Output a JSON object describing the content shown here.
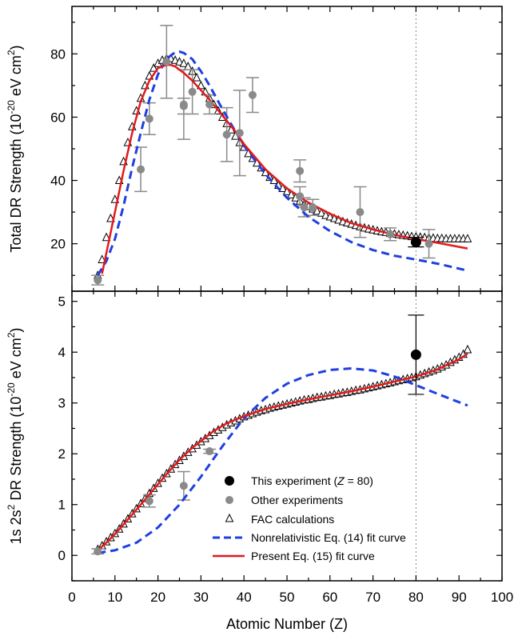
{
  "xlabel": "Atomic Number (Z)",
  "xlim": [
    0,
    100
  ],
  "x_ticks": [
    0,
    10,
    20,
    30,
    40,
    50,
    60,
    70,
    80,
    90,
    100
  ],
  "colors": {
    "experiment": "#000000",
    "other": "#8a8a8a",
    "fac": "#000000",
    "nonrel": "#1f3fe0",
    "present": "#e4191c",
    "reference_line": "#888888"
  },
  "chart_data": [
    {
      "type": "scatter",
      "ylabel": {
        "prefix": "Total DR Strength (10",
        "exponent": "-20",
        "middle": " eV cm",
        "power": "2",
        "suffix": ")"
      },
      "ylim": [
        5,
        95
      ],
      "y_ticks": [
        20,
        40,
        60,
        80
      ],
      "reference_x": 80,
      "this_experiment": [
        {
          "x": 80,
          "y": 20.5,
          "err": 1.5
        }
      ],
      "other_experiments": [
        {
          "x": 6,
          "y": 8.5,
          "err": 1.5
        },
        {
          "x": 16,
          "y": 43.5,
          "err": 7
        },
        {
          "x": 18,
          "y": 59.5,
          "err": 5
        },
        {
          "x": 22,
          "y": 77.5,
          "err": 11.5
        },
        {
          "x": 26,
          "y": 64,
          "err": 11
        },
        {
          "x": 26,
          "y": 63.5,
          "err": 2.5
        },
        {
          "x": 28,
          "y": 68,
          "err": 7
        },
        {
          "x": 32,
          "y": 64,
          "err": 3
        },
        {
          "x": 36,
          "y": 54.5,
          "err": 8.5
        },
        {
          "x": 39,
          "y": 55,
          "err": 13.5
        },
        {
          "x": 42,
          "y": 67,
          "err": 5.5
        },
        {
          "x": 53,
          "y": 43,
          "err": 3.5
        },
        {
          "x": 53,
          "y": 35,
          "err": 3
        },
        {
          "x": 54,
          "y": 31.5,
          "err": 3
        },
        {
          "x": 56,
          "y": 31.5,
          "err": 2.5
        },
        {
          "x": 67,
          "y": 30,
          "err": 8
        },
        {
          "x": 74,
          "y": 23,
          "err": 2
        },
        {
          "x": 83,
          "y": 20,
          "err": 4.5
        }
      ],
      "fac": [
        {
          "x": 6,
          "y": 10
        },
        {
          "x": 7,
          "y": 15
        },
        {
          "x": 8,
          "y": 22
        },
        {
          "x": 9,
          "y": 28
        },
        {
          "x": 10,
          "y": 34
        },
        {
          "x": 11,
          "y": 40
        },
        {
          "x": 12,
          "y": 46
        },
        {
          "x": 13,
          "y": 52
        },
        {
          "x": 14,
          "y": 57
        },
        {
          "x": 15,
          "y": 62
        },
        {
          "x": 16,
          "y": 66
        },
        {
          "x": 17,
          "y": 70
        },
        {
          "x": 18,
          "y": 73
        },
        {
          "x": 19,
          "y": 75.5
        },
        {
          "x": 20,
          "y": 77
        },
        {
          "x": 21,
          "y": 78
        },
        {
          "x": 22,
          "y": 78.5
        },
        {
          "x": 23,
          "y": 78.5
        },
        {
          "x": 24,
          "y": 78
        },
        {
          "x": 25,
          "y": 77.5
        },
        {
          "x": 26,
          "y": 77
        },
        {
          "x": 27,
          "y": 76
        },
        {
          "x": 28,
          "y": 74.5
        },
        {
          "x": 29,
          "y": 72.5
        },
        {
          "x": 30,
          "y": 70
        },
        {
          "x": 31,
          "y": 68
        },
        {
          "x": 32,
          "y": 66
        },
        {
          "x": 33,
          "y": 64
        },
        {
          "x": 34,
          "y": 62
        },
        {
          "x": 35,
          "y": 60
        },
        {
          "x": 36,
          "y": 58
        },
        {
          "x": 37,
          "y": 56
        },
        {
          "x": 38,
          "y": 54
        },
        {
          "x": 39,
          "y": 52
        },
        {
          "x": 40,
          "y": 50.5
        },
        {
          "x": 41,
          "y": 48.5
        },
        {
          "x": 42,
          "y": 47
        },
        {
          "x": 43,
          "y": 45.5
        },
        {
          "x": 44,
          "y": 44
        },
        {
          "x": 45,
          "y": 42.5
        },
        {
          "x": 46,
          "y": 41
        },
        {
          "x": 47,
          "y": 40
        },
        {
          "x": 48,
          "y": 38.5
        },
        {
          "x": 49,
          "y": 37.5
        },
        {
          "x": 50,
          "y": 36.5
        },
        {
          "x": 51,
          "y": 35.5
        },
        {
          "x": 52,
          "y": 34.5
        },
        {
          "x": 53,
          "y": 33.5
        },
        {
          "x": 54,
          "y": 32.5
        },
        {
          "x": 55,
          "y": 31.8
        },
        {
          "x": 56,
          "y": 31
        },
        {
          "x": 57,
          "y": 30.3
        },
        {
          "x": 58,
          "y": 29.7
        },
        {
          "x": 59,
          "y": 29
        },
        {
          "x": 60,
          "y": 28.5
        },
        {
          "x": 61,
          "y": 28
        },
        {
          "x": 62,
          "y": 27.5
        },
        {
          "x": 63,
          "y": 27
        },
        {
          "x": 64,
          "y": 26.6
        },
        {
          "x": 65,
          "y": 26.2
        },
        {
          "x": 66,
          "y": 25.8
        },
        {
          "x": 67,
          "y": 25.4
        },
        {
          "x": 68,
          "y": 25
        },
        {
          "x": 69,
          "y": 24.7
        },
        {
          "x": 70,
          "y": 24.4
        },
        {
          "x": 71,
          "y": 24.1
        },
        {
          "x": 72,
          "y": 23.8
        },
        {
          "x": 73,
          "y": 23.6
        },
        {
          "x": 74,
          "y": 23.3
        },
        {
          "x": 75,
          "y": 23.1
        },
        {
          "x": 76,
          "y": 22.9
        },
        {
          "x": 77,
          "y": 22.7
        },
        {
          "x": 78,
          "y": 22.5
        },
        {
          "x": 79,
          "y": 22.3
        },
        {
          "x": 80,
          "y": 22.2
        },
        {
          "x": 81,
          "y": 22.1
        },
        {
          "x": 82,
          "y": 22
        },
        {
          "x": 83,
          "y": 21.9
        },
        {
          "x": 84,
          "y": 21.8
        },
        {
          "x": 85,
          "y": 21.7
        },
        {
          "x": 86,
          "y": 21.7
        },
        {
          "x": 87,
          "y": 21.6
        },
        {
          "x": 88,
          "y": 21.6
        },
        {
          "x": 89,
          "y": 21.6
        },
        {
          "x": 90,
          "y": 21.6
        },
        {
          "x": 91,
          "y": 21.6
        },
        {
          "x": 92,
          "y": 21.6
        }
      ],
      "nonrel_fit": {
        "x": [
          6,
          8,
          10,
          12,
          14,
          16,
          18,
          20,
          22,
          24,
          25,
          26,
          28,
          30,
          32,
          35,
          38,
          40,
          45,
          50,
          55,
          60,
          65,
          70,
          75,
          80,
          85,
          92
        ],
        "y": [
          10,
          14.5,
          21.5,
          32,
          44,
          55,
          65.5,
          73.5,
          78.5,
          80.5,
          80.7,
          80.3,
          78.3,
          74.5,
          70,
          62.5,
          55.5,
          51,
          42,
          34.5,
          28.5,
          24,
          20.5,
          18,
          16.2,
          15,
          13.7,
          11.5
        ]
      },
      "present_fit": {
        "x": [
          7,
          8,
          10,
          12,
          14,
          16,
          18,
          20,
          22,
          23,
          24,
          26,
          28,
          30,
          32,
          35,
          38,
          40,
          45,
          50,
          55,
          60,
          65,
          70,
          75,
          80,
          85,
          92
        ],
        "y": [
          10.5,
          17,
          30,
          43,
          55,
          65,
          71.5,
          75.5,
          76.5,
          76.5,
          76,
          74,
          71.5,
          68.5,
          65.5,
          60.5,
          55.5,
          51.5,
          43.5,
          37.5,
          33,
          29.5,
          26.5,
          24.5,
          22.8,
          21.5,
          20.3,
          18.5
        ]
      }
    },
    {
      "type": "scatter",
      "ylabel": {
        "prefix": "1s 2s",
        "exponent": "2",
        "middle": " DR Strength (10",
        "power": "-20",
        "suffix": " eV cm",
        "suffix_power": "2",
        "end": ")"
      },
      "ylim": [
        -0.5,
        5.2
      ],
      "y_ticks": [
        0,
        1,
        2,
        3,
        4,
        5
      ],
      "reference_x": 80,
      "this_experiment": [
        {
          "x": 80,
          "y": 3.95,
          "err": 0.78
        }
      ],
      "other_experiments": [
        {
          "x": 6,
          "y": 0.08,
          "err": 0.05
        },
        {
          "x": 18,
          "y": 1.07,
          "err": 0.12
        },
        {
          "x": 26,
          "y": 1.37,
          "err": 0.28
        },
        {
          "x": 32,
          "y": 2.05,
          "err": 0.04
        }
      ],
      "fac": [
        {
          "x": 6,
          "y": 0.12
        },
        {
          "x": 7,
          "y": 0.19
        },
        {
          "x": 8,
          "y": 0.27
        },
        {
          "x": 9,
          "y": 0.35
        },
        {
          "x": 10,
          "y": 0.43
        },
        {
          "x": 11,
          "y": 0.52
        },
        {
          "x": 12,
          "y": 0.62
        },
        {
          "x": 13,
          "y": 0.72
        },
        {
          "x": 14,
          "y": 0.82
        },
        {
          "x": 15,
          "y": 0.92
        },
        {
          "x": 16,
          "y": 1.02
        },
        {
          "x": 17,
          "y": 1.12
        },
        {
          "x": 18,
          "y": 1.22
        },
        {
          "x": 19,
          "y": 1.32
        },
        {
          "x": 20,
          "y": 1.42
        },
        {
          "x": 21,
          "y": 1.52
        },
        {
          "x": 22,
          "y": 1.61
        },
        {
          "x": 23,
          "y": 1.7
        },
        {
          "x": 24,
          "y": 1.79
        },
        {
          "x": 25,
          "y": 1.87
        },
        {
          "x": 26,
          "y": 1.95
        },
        {
          "x": 27,
          "y": 2.03
        },
        {
          "x": 28,
          "y": 2.1
        },
        {
          "x": 29,
          "y": 2.17
        },
        {
          "x": 30,
          "y": 2.24
        },
        {
          "x": 31,
          "y": 2.3
        },
        {
          "x": 32,
          "y": 2.36
        },
        {
          "x": 33,
          "y": 2.42
        },
        {
          "x": 34,
          "y": 2.47
        },
        {
          "x": 35,
          "y": 2.52
        },
        {
          "x": 36,
          "y": 2.57
        },
        {
          "x": 37,
          "y": 2.61
        },
        {
          "x": 38,
          "y": 2.65
        },
        {
          "x": 39,
          "y": 2.69
        },
        {
          "x": 40,
          "y": 2.73
        },
        {
          "x": 41,
          "y": 2.76
        },
        {
          "x": 42,
          "y": 2.79
        },
        {
          "x": 43,
          "y": 2.82
        },
        {
          "x": 44,
          "y": 2.85
        },
        {
          "x": 45,
          "y": 2.87
        },
        {
          "x": 46,
          "y": 2.9
        },
        {
          "x": 47,
          "y": 2.92
        },
        {
          "x": 48,
          "y": 2.94
        },
        {
          "x": 49,
          "y": 2.96
        },
        {
          "x": 50,
          "y": 2.98
        },
        {
          "x": 51,
          "y": 3
        },
        {
          "x": 52,
          "y": 3.02
        },
        {
          "x": 53,
          "y": 3.04
        },
        {
          "x": 54,
          "y": 3.06
        },
        {
          "x": 55,
          "y": 3.07
        },
        {
          "x": 56,
          "y": 3.09
        },
        {
          "x": 57,
          "y": 3.11
        },
        {
          "x": 58,
          "y": 3.12
        },
        {
          "x": 59,
          "y": 3.14
        },
        {
          "x": 60,
          "y": 3.15
        },
        {
          "x": 61,
          "y": 3.17
        },
        {
          "x": 62,
          "y": 3.18
        },
        {
          "x": 63,
          "y": 3.2
        },
        {
          "x": 64,
          "y": 3.21
        },
        {
          "x": 65,
          "y": 3.23
        },
        {
          "x": 66,
          "y": 3.25
        },
        {
          "x": 67,
          "y": 3.26
        },
        {
          "x": 68,
          "y": 3.28
        },
        {
          "x": 69,
          "y": 3.3
        },
        {
          "x": 70,
          "y": 3.32
        },
        {
          "x": 71,
          "y": 3.34
        },
        {
          "x": 72,
          "y": 3.36
        },
        {
          "x": 73,
          "y": 3.38
        },
        {
          "x": 74,
          "y": 3.4
        },
        {
          "x": 75,
          "y": 3.42
        },
        {
          "x": 76,
          "y": 3.44
        },
        {
          "x": 77,
          "y": 3.46
        },
        {
          "x": 78,
          "y": 3.48
        },
        {
          "x": 79,
          "y": 3.5
        },
        {
          "x": 80,
          "y": 3.52
        },
        {
          "x": 81,
          "y": 3.55
        },
        {
          "x": 82,
          "y": 3.58
        },
        {
          "x": 83,
          "y": 3.61
        },
        {
          "x": 84,
          "y": 3.64
        },
        {
          "x": 85,
          "y": 3.67
        },
        {
          "x": 86,
          "y": 3.71
        },
        {
          "x": 87,
          "y": 3.75
        },
        {
          "x": 88,
          "y": 3.8
        },
        {
          "x": 89,
          "y": 3.85
        },
        {
          "x": 90,
          "y": 3.9
        },
        {
          "x": 91,
          "y": 3.96
        },
        {
          "x": 92,
          "y": 4.05
        }
      ],
      "nonrel_fit": {
        "x": [
          6,
          10,
          15,
          20,
          25,
          30,
          35,
          40,
          45,
          50,
          55,
          60,
          65,
          70,
          75,
          80,
          85,
          92
        ],
        "y": [
          0.05,
          0.1,
          0.25,
          0.55,
          1.0,
          1.55,
          2.15,
          2.7,
          3.1,
          3.38,
          3.55,
          3.65,
          3.68,
          3.64,
          3.52,
          3.35,
          3.18,
          2.95
        ]
      },
      "present_fit": {
        "x": [
          6,
          8,
          10,
          12,
          15,
          18,
          20,
          22,
          25,
          28,
          30,
          33,
          36,
          40,
          45,
          50,
          55,
          60,
          65,
          70,
          75,
          80,
          85,
          88,
          90,
          92
        ],
        "y": [
          0.1,
          0.25,
          0.42,
          0.61,
          0.9,
          1.2,
          1.4,
          1.6,
          1.88,
          2.12,
          2.25,
          2.45,
          2.6,
          2.74,
          2.88,
          2.98,
          3.07,
          3.15,
          3.23,
          3.32,
          3.42,
          3.52,
          3.66,
          3.78,
          3.86,
          3.97
        ]
      }
    }
  ],
  "legend": {
    "this_experiment": {
      "prefix": "This experiment (",
      "var": "Z",
      "suffix": " = 80)"
    },
    "other_experiments": "Other experiments",
    "fac": "FAC calculations",
    "nonrel": "Nonrelativistic Eq. (14) fit curve",
    "present": "Present Eq. (15) fit curve"
  }
}
